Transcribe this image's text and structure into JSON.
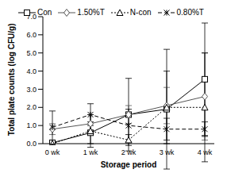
{
  "chart_data": {
    "type": "line",
    "x_label": "Storage period",
    "y_label": "Total plate counts (log CFU/g)",
    "categories": [
      "0 wk",
      "1 wk",
      "2 wk",
      "3 wk",
      "4 wk"
    ],
    "ylim": [
      0,
      7
    ],
    "yticks": [
      {
        "value": 0,
        "label": "0.0"
      },
      {
        "value": 1,
        "label": "1.0"
      },
      {
        "value": 2,
        "label": "2.0"
      },
      {
        "value": 3,
        "label": "3.0"
      },
      {
        "value": 4,
        "label": "4.0"
      },
      {
        "value": 5,
        "label": "5.0"
      },
      {
        "value": 6,
        "label": "6.0"
      },
      {
        "value": 7,
        "label": "7.0"
      }
    ],
    "grid": false,
    "legend": "top",
    "series": [
      {
        "name": "Con",
        "color": "#000000",
        "marker": "square",
        "line_style": "solid",
        "values": [
          0.05,
          0.6,
          1.6,
          1.9,
          3.55
        ],
        "errors": [
          0.1,
          0.6,
          2.0,
          3.3,
          3.1
        ]
      },
      {
        "name": "1.50%T",
        "color": "#555555",
        "marker": "diamond",
        "line_style": "solid",
        "values": [
          0.8,
          1.1,
          1.6,
          2.1,
          2.6
        ],
        "errors": [
          0.3,
          0.5,
          0.5,
          1.0,
          2.4
        ]
      },
      {
        "name": "N-con",
        "color": "#000000",
        "marker": "triangle",
        "line_style": "dotted",
        "values": [
          0.0,
          0.7,
          0.2,
          2.0,
          2.0
        ],
        "errors": [
          0.05,
          0.9,
          0.3,
          2.0,
          3.0
        ]
      },
      {
        "name": "0.80%T",
        "color": "#000000",
        "marker": "x",
        "line_style": "dashed",
        "values": [
          0.9,
          1.6,
          1.0,
          0.8,
          0.8
        ],
        "errors": [
          0.9,
          0.6,
          0.9,
          0.6,
          0.4
        ]
      }
    ]
  }
}
